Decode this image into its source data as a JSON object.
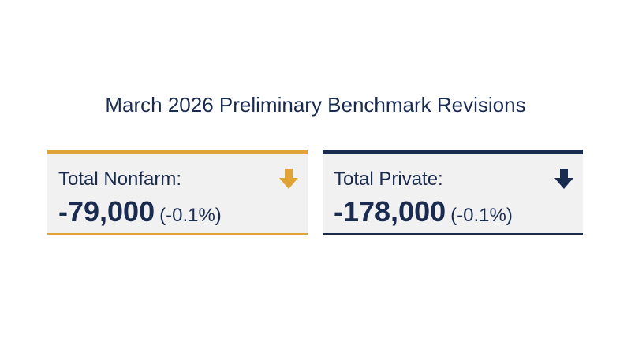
{
  "title": "March 2026 Preliminary Benchmark Revisions",
  "cards": [
    {
      "label": "Total Nonfarm:",
      "value": "-79,000",
      "change": "(-0.1%)"
    },
    {
      "label": "Total Private:",
      "value": "-178,000",
      "change": "(-0.1%)"
    }
  ]
}
